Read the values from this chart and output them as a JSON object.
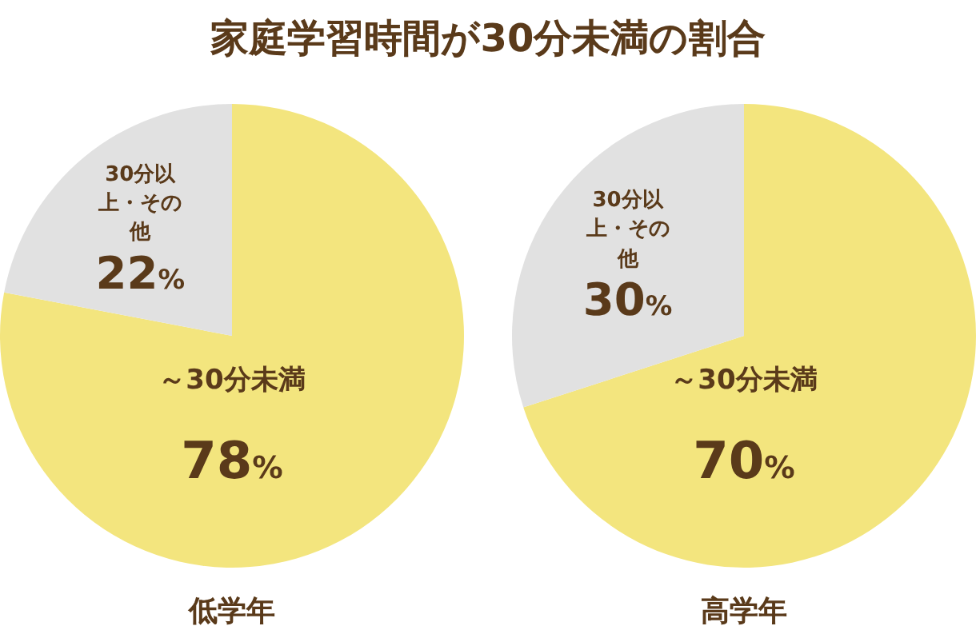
{
  "chart_data": [
    {
      "type": "pie",
      "title": "家庭学習時間が30分未満の割合",
      "xlabel": "低学年",
      "categories": [
        "～30分未満",
        "30分以上・その他"
      ],
      "values": [
        78,
        22
      ],
      "colors": [
        "#f3e57e",
        "#e1e1e1"
      ],
      "value_labels": [
        "78%",
        "22%"
      ]
    },
    {
      "type": "pie",
      "xlabel": "高学年",
      "categories": [
        "～30分未満",
        "30分以上・その他"
      ],
      "values": [
        70,
        30
      ],
      "colors": [
        "#f3e57e",
        "#e1e1e1"
      ],
      "value_labels": [
        "70%",
        "30%"
      ]
    }
  ]
}
